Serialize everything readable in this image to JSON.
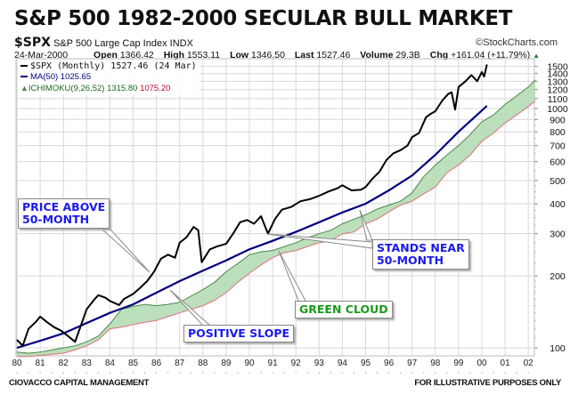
{
  "title": "S&P 500 1982-2000 SECULAR BULL MARKET",
  "header": {
    "symbol": "$SPX",
    "name": "S&P 500 Large Cap Index",
    "exchange": "INDX",
    "brand": "©StockCharts.com",
    "date": "24-Mar-2000",
    "open_label": "Open",
    "open": "1366.42",
    "high_label": "High",
    "high": "1553.11",
    "low_label": "Low",
    "low": "1346.50",
    "last_label": "Last",
    "last": "1527.46",
    "volume_label": "Volume",
    "volume": "29.3B",
    "chg_label": "Chg",
    "chg": "+161.04 (+11.79%)",
    "chg_icon": "up-triangle-icon"
  },
  "legend": {
    "price": "$SPX (Monthly) 1527.46 (24 Mar)",
    "ma": "MA(50) 1025.65",
    "ichimoku": "ICHIMOKU(9,26,52) 1315.80",
    "ichimoku_b": "1075.20"
  },
  "callouts": {
    "price_above": [
      "PRICE ABOVE",
      "50-MONTH"
    ],
    "positive_slope": "POSITIVE SLOPE",
    "green_cloud": "GREEN CLOUD",
    "stands_near": [
      "STANDS NEAR",
      "50-MONTH"
    ]
  },
  "footer": {
    "left": "CIOVACCO CAPITAL MANAGEMENT",
    "right": "FOR ILLUSTRATIVE PURPOSES ONLY"
  },
  "colors": {
    "price": "#000000",
    "ma": "#000080",
    "span_a": "#4a8a4a",
    "span_b": "#e07080",
    "cloud": "#b5dbb5",
    "grid": "#d8d8d8"
  },
  "chart_data": {
    "type": "line",
    "title": "S&P 500 1982-2000 SECULAR BULL MARKET",
    "xlabel": "",
    "ylabel": "",
    "yscale": "log",
    "ylim": [
      95,
      1600
    ],
    "xlim": [
      1979.95,
      2002.9
    ],
    "grid": true,
    "legend_position": "top-left",
    "x_ticks": [
      "80",
      "81",
      "82",
      "83",
      "84",
      "85",
      "86",
      "87",
      "88",
      "89",
      "90",
      "91",
      "92",
      "93",
      "94",
      "95",
      "96",
      "97",
      "98",
      "99",
      "00",
      "01",
      "02"
    ],
    "y_ticks": [
      100,
      200,
      300,
      400,
      500,
      600,
      700,
      800,
      900,
      1000,
      1100,
      1200,
      1300,
      1400,
      1500
    ],
    "series": [
      {
        "name": "$SPX (Monthly)",
        "x": [
          1980.0,
          1980.25,
          1980.5,
          1980.8,
          1981.0,
          1981.3,
          1981.6,
          1981.9,
          1982.2,
          1982.5,
          1982.7,
          1983.0,
          1983.3,
          1983.5,
          1983.8,
          1984.0,
          1984.4,
          1984.6,
          1985.0,
          1985.3,
          1985.6,
          1985.9,
          1986.2,
          1986.5,
          1986.8,
          1987.0,
          1987.3,
          1987.6,
          1987.8,
          1987.95,
          1988.3,
          1988.6,
          1989.0,
          1989.3,
          1989.6,
          1989.9,
          1990.2,
          1990.5,
          1990.8,
          1991.1,
          1991.4,
          1991.8,
          1992.2,
          1992.6,
          1993.0,
          1993.4,
          1993.8,
          1994.0,
          1994.4,
          1994.8,
          1995.0,
          1995.3,
          1995.6,
          1995.9,
          1996.2,
          1996.5,
          1996.8,
          1997.0,
          1997.3,
          1997.6,
          1997.8,
          1998.0,
          1998.3,
          1998.55,
          1998.7,
          1998.85,
          1999.0,
          1999.3,
          1999.55,
          1999.8,
          2000.0,
          2000.1,
          2000.22
        ],
        "values": [
          108,
          102,
          120,
          128,
          135,
          128,
          122,
          118,
          112,
          106,
          120,
          145,
          158,
          166,
          162,
          157,
          151,
          160,
          168,
          178,
          190,
          208,
          236,
          245,
          238,
          275,
          290,
          320,
          310,
          228,
          258,
          265,
          272,
          300,
          335,
          342,
          330,
          355,
          300,
          345,
          378,
          388,
          410,
          418,
          432,
          450,
          465,
          478,
          455,
          458,
          470,
          510,
          545,
          610,
          650,
          670,
          700,
          760,
          790,
          920,
          950,
          975,
          1080,
          1150,
          1170,
          990,
          1230,
          1300,
          1380,
          1300,
          1420,
          1360,
          1527
        ]
      },
      {
        "name": "MA(50)",
        "x": [
          1980.0,
          1981.0,
          1982.0,
          1983.0,
          1984.0,
          1985.0,
          1986.0,
          1987.0,
          1988.0,
          1989.0,
          1990.0,
          1991.0,
          1992.0,
          1993.0,
          1994.0,
          1995.0,
          1996.0,
          1997.0,
          1998.0,
          1999.0,
          2000.22
        ],
        "values": [
          100,
          107,
          115,
          127,
          140,
          152,
          170,
          190,
          210,
          232,
          258,
          280,
          305,
          335,
          368,
          400,
          455,
          525,
          640,
          800,
          1025.65
        ]
      },
      {
        "name": "ICHIMOKU Span A",
        "x": [
          1980.0,
          1980.5,
          1981.0,
          1981.5,
          1982.0,
          1982.5,
          1983.0,
          1983.5,
          1984.0,
          1984.5,
          1985.0,
          1985.5,
          1986.0,
          1986.5,
          1987.0,
          1987.5,
          1988.0,
          1988.5,
          1989.0,
          1989.5,
          1990.0,
          1990.5,
          1991.0,
          1991.5,
          1992.0,
          1992.5,
          1993.0,
          1993.5,
          1994.0,
          1994.5,
          1995.0,
          1995.5,
          1996.0,
          1996.5,
          1997.0,
          1997.5,
          1998.0,
          1998.5,
          1999.0,
          1999.5,
          2000.0,
          2000.5,
          2001.0,
          2001.5,
          2002.0,
          2002.3
        ],
        "values": [
          96,
          95,
          96,
          98,
          100,
          102,
          106,
          112,
          126,
          145,
          149,
          152,
          150,
          152,
          155,
          165,
          175,
          188,
          208,
          225,
          245,
          252,
          255,
          265,
          275,
          288,
          300,
          310,
          330,
          345,
          360,
          380,
          395,
          410,
          445,
          520,
          580,
          640,
          700,
          780,
          880,
          940,
          1040,
          1130,
          1230,
          1315.8
        ]
      },
      {
        "name": "ICHIMOKU Span B",
        "x": [
          1980.0,
          1980.5,
          1981.0,
          1981.5,
          1982.0,
          1982.5,
          1983.0,
          1983.5,
          1984.0,
          1984.5,
          1985.0,
          1985.5,
          1986.0,
          1986.5,
          1987.0,
          1987.5,
          1988.0,
          1988.5,
          1989.0,
          1989.5,
          1990.0,
          1990.5,
          1991.0,
          1991.5,
          1992.0,
          1992.5,
          1993.0,
          1993.5,
          1994.0,
          1994.5,
          1995.0,
          1995.5,
          1996.0,
          1996.5,
          1997.0,
          1997.5,
          1998.0,
          1998.5,
          1999.0,
          1999.5,
          2000.0,
          2000.5,
          2001.0,
          2001.5,
          2002.0,
          2002.3
        ],
        "values": [
          92,
          92,
          93,
          94,
          95,
          98,
          102,
          108,
          120,
          122,
          125,
          128,
          130,
          135,
          140,
          145,
          150,
          158,
          170,
          188,
          205,
          222,
          238,
          250,
          255,
          265,
          275,
          280,
          300,
          305,
          330,
          345,
          370,
          395,
          410,
          440,
          470,
          540,
          580,
          640,
          730,
          790,
          870,
          940,
          1020,
          1075.2
        ]
      }
    ]
  }
}
